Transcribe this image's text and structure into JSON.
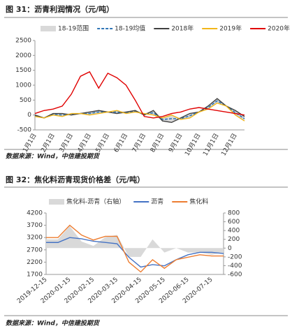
{
  "chart_data": [
    {
      "type": "line",
      "title": "图 31：沥青利润情况（元/吨）",
      "categories": [
        "1月1日",
        null,
        "2月1日",
        null,
        "3月1日",
        null,
        "4月1日",
        null,
        "5月1日",
        null,
        "6月1日",
        null,
        "7月1日",
        null,
        "8月1日",
        null,
        "9月1日",
        null,
        "10月1日",
        null,
        "11月1日",
        null,
        "12月1日",
        null
      ],
      "ylim": [
        -500,
        2500
      ],
      "yticks": [
        -500,
        0,
        500,
        1000,
        1500,
        2000,
        2500
      ],
      "series": [
        {
          "name": "18-19范围",
          "color": "#d9d9d9",
          "style": "band",
          "low": [
            -50,
            -100,
            0,
            -50,
            0,
            50,
            0,
            50,
            100,
            50,
            50,
            100,
            0,
            0,
            -200,
            -250,
            -150,
            -100,
            100,
            200,
            400,
            300,
            0,
            -200
          ],
          "high": [
            0,
            -100,
            50,
            50,
            50,
            50,
            100,
            150,
            100,
            150,
            100,
            150,
            50,
            150,
            -100,
            0,
            -100,
            50,
            100,
            300,
            550,
            300,
            150,
            -50
          ]
        },
        {
          "name": "18-19均值",
          "color": "#2e75b6",
          "style": "dashed",
          "values": [
            -25,
            -100,
            25,
            0,
            25,
            50,
            50,
            100,
            100,
            100,
            75,
            125,
            25,
            75,
            -150,
            -125,
            -125,
            -25,
            100,
            250,
            475,
            300,
            75,
            -125
          ]
        },
        {
          "name": "2018年",
          "color": "#404040",
          "style": "line",
          "values": [
            0,
            -100,
            50,
            50,
            0,
            50,
            100,
            150,
            100,
            50,
            100,
            150,
            0,
            150,
            -200,
            -250,
            -100,
            50,
            100,
            300,
            550,
            300,
            150,
            -50
          ]
        },
        {
          "name": "2019年",
          "color": "#f2b619",
          "style": "line",
          "values": [
            -50,
            -100,
            0,
            -50,
            50,
            50,
            0,
            50,
            100,
            150,
            50,
            100,
            50,
            0,
            -100,
            0,
            -150,
            -100,
            100,
            200,
            400,
            300,
            0,
            -200
          ]
        },
        {
          "name": "2020年",
          "color": "#e00000",
          "style": "line",
          "values": [
            50,
            150,
            200,
            300,
            700,
            1300,
            1450,
            900,
            1400,
            1250,
            1000,
            500,
            -50,
            -100,
            -50,
            50,
            100,
            200,
            250,
            200,
            150,
            100,
            50,
            0
          ]
        }
      ]
    },
    {
      "type": "line",
      "title": "图 32：焦化料沥青现货价格差（元/吨）",
      "categories": [
        "2019-12-15",
        null,
        "2020-01-15",
        null,
        "2020-02-15",
        null,
        "2020-03-15",
        null,
        "2020-04-15",
        null,
        "2020-05-15",
        null,
        "2020-06-15",
        null,
        "2020-07-15",
        null
      ],
      "ylim": [
        1700,
        4200
      ],
      "yticks": [
        1700,
        2200,
        2700,
        3200,
        3700,
        4200
      ],
      "y2lim": [
        -600,
        800
      ],
      "y2ticks": [
        -600,
        -400,
        -200,
        0,
        200,
        400,
        600,
        800
      ],
      "series": [
        {
          "name": "焦化料-沥青（右轴）",
          "color": "#d9d9d9",
          "style": "area",
          "axis": "y2",
          "values": [
            200,
            200,
            500,
            150,
            50,
            250,
            300,
            -200,
            -200,
            200,
            -100,
            0,
            -100,
            -100,
            -150,
            -100
          ]
        },
        {
          "name": "沥青",
          "color": "#4472c4",
          "style": "line",
          "values": [
            3000,
            3000,
            3200,
            3150,
            3050,
            3000,
            2950,
            2400,
            2000,
            2100,
            2050,
            2300,
            2500,
            2600,
            2600,
            2550
          ]
        },
        {
          "name": "焦化料",
          "color": "#ed7d31",
          "style": "line",
          "values": [
            3200,
            3200,
            3700,
            3300,
            3100,
            3250,
            3250,
            2200,
            1800,
            2300,
            1950,
            2300,
            2400,
            2500,
            2450,
            2450
          ]
        }
      ]
    }
  ],
  "sources": [
    "数据来源：Wind，中信建投期货",
    "数据来源：Wind，中信建投期货"
  ]
}
